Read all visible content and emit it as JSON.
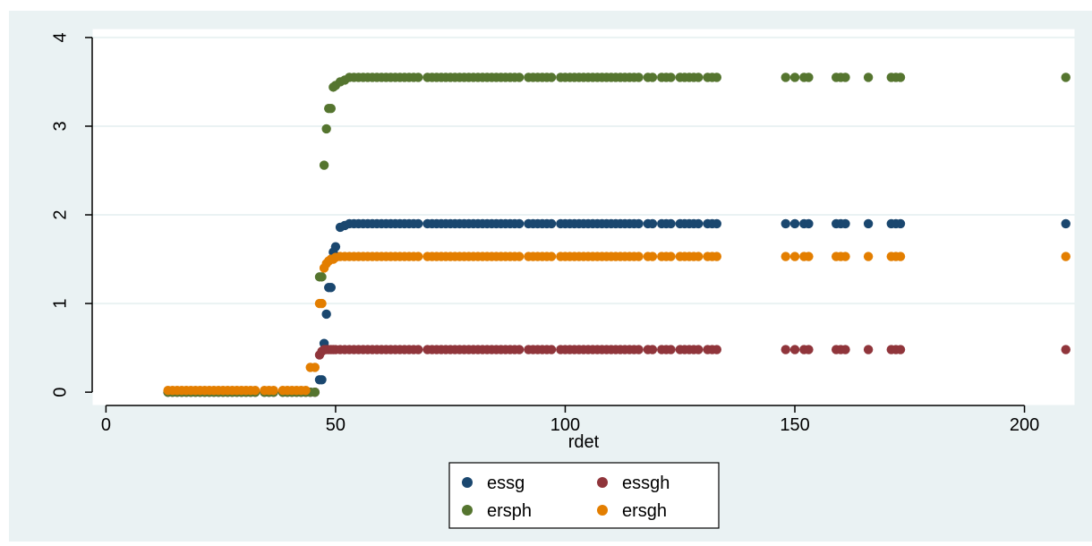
{
  "chart_data": {
    "type": "scatter",
    "title": "",
    "xlabel": "rdet",
    "ylabel": "",
    "xlim": [
      -3,
      211
    ],
    "ylim": [
      -0.15,
      4.1
    ],
    "xticks": [
      "0",
      "50",
      "100",
      "150",
      "200"
    ],
    "xtick_values": [
      0,
      50,
      100,
      150,
      200
    ],
    "yticks": [
      "0",
      "1",
      "2",
      "3",
      "4"
    ],
    "ytick_values": [
      0,
      1,
      2,
      3,
      4
    ],
    "grid": "horizontal",
    "legend_position": "bottom-center",
    "legend_columns": 2,
    "x_samples": [
      13.5,
      14.5,
      15.5,
      16.5,
      17.5,
      18.5,
      19.5,
      20.5,
      21.5,
      22.5,
      23.5,
      24.5,
      25.5,
      26.5,
      27.5,
      28.5,
      29.5,
      30.5,
      31.5,
      32.5,
      34.5,
      35.5,
      36.5,
      38.5,
      39.5,
      40.5,
      41.5,
      42.5,
      43.5,
      44.5,
      45.5,
      46.5,
      47.0,
      47.5,
      48.0,
      48.5,
      49.0,
      49.5,
      50.0,
      51.0,
      52.0,
      53.0,
      54.0,
      55.0,
      56.0,
      57.0,
      58.0,
      59.0,
      60.0,
      61.0,
      62.0,
      63.0,
      64.0,
      65.0,
      66.0,
      67.0,
      68.0,
      70.0,
      71.0,
      72.0,
      73.0,
      74.0,
      75.0,
      76.0,
      77.0,
      78.0,
      79.0,
      80.0,
      81.0,
      82.0,
      83.0,
      84.0,
      85.0,
      86.0,
      87.0,
      88.0,
      89.0,
      90.0,
      92.0,
      93.0,
      94.0,
      95.0,
      96.0,
      97.0,
      99.0,
      100.0,
      101.0,
      102.0,
      103.0,
      104.0,
      105.0,
      106.0,
      107.0,
      108.0,
      109.0,
      110.0,
      111.0,
      112.0,
      113.0,
      114.0,
      115.0,
      116.0,
      118.0,
      119.0,
      121.0,
      122.0,
      123.0,
      125.0,
      126.0,
      127.0,
      128.0,
      129.0,
      131.0,
      132.0,
      133.0,
      148.0,
      150.0,
      152.0,
      153.0,
      159.0,
      160.0,
      161.0,
      166.0,
      171.0,
      172.0,
      173.0,
      209.0
    ],
    "series": [
      {
        "name": "essg",
        "color": "#1a476f",
        "start": 0,
        "plateau": 1.9,
        "y_rise": [
          [
            44.5,
            0
          ],
          [
            45.5,
            0.0
          ],
          [
            46.5,
            0.14
          ],
          [
            47.5,
            0.55
          ],
          [
            48.0,
            0.88
          ],
          [
            48.5,
            1.18
          ],
          [
            49.5,
            1.58
          ],
          [
            50.0,
            1.64
          ],
          [
            51.0,
            1.86
          ],
          [
            52.0,
            1.88
          ],
          [
            53.0,
            1.9
          ]
        ]
      },
      {
        "name": "essgh",
        "color": "#90353b",
        "start": 0,
        "plateau": 0.48,
        "y_rise": [
          [
            44.5,
            0
          ],
          [
            45.5,
            0.0
          ],
          [
            46.5,
            0.42
          ],
          [
            47.0,
            0.46
          ],
          [
            47.5,
            0.48
          ]
        ]
      },
      {
        "name": "ersph",
        "color": "#55752f",
        "start": 0,
        "plateau": 3.55,
        "y_rise": [
          [
            44.5,
            0
          ],
          [
            46.5,
            1.3
          ],
          [
            47.5,
            2.56
          ],
          [
            48.0,
            2.97
          ],
          [
            48.5,
            3.2
          ],
          [
            49.0,
            3.2
          ],
          [
            49.5,
            3.44
          ],
          [
            50.0,
            3.46
          ],
          [
            51.0,
            3.5
          ],
          [
            52.0,
            3.52
          ],
          [
            53.0,
            3.55
          ]
        ]
      },
      {
        "name": "ersgh",
        "color": "#e37e00",
        "start": 0.02,
        "plateau": 1.53,
        "y_rise": [
          [
            43.5,
            0.02
          ],
          [
            44.5,
            0.28
          ],
          [
            45.5,
            0.28
          ],
          [
            46.5,
            1.0
          ],
          [
            47.5,
            1.4
          ],
          [
            48.0,
            1.45
          ],
          [
            48.5,
            1.48
          ],
          [
            49.0,
            1.5
          ],
          [
            50.0,
            1.52
          ],
          [
            51.0,
            1.53
          ]
        ]
      }
    ]
  }
}
